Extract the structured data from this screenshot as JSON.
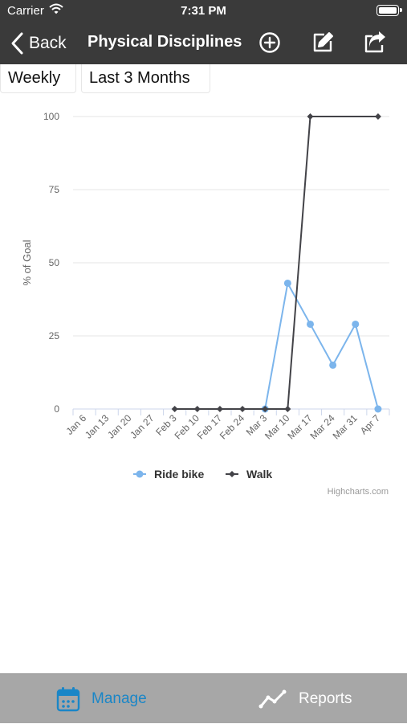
{
  "status_bar": {
    "carrier": "Carrier",
    "time": "7:31 PM"
  },
  "nav_bar": {
    "back_label": "Back",
    "title": "Physical Disciplines"
  },
  "filters": {
    "period": "Weekly",
    "range": "Last 3 Months"
  },
  "chart_data": {
    "type": "line",
    "ylabel": "% of Goal",
    "xlabel": "",
    "ylim": [
      0,
      100
    ],
    "y_ticks": [
      0,
      25,
      50,
      75,
      100
    ],
    "categories": [
      "Jan 6",
      "Jan 13",
      "Jan 20",
      "Jan 27",
      "Feb 3",
      "Feb 10",
      "Feb 17",
      "Feb 24",
      "Mar 3",
      "Mar 10",
      "Mar 17",
      "Mar 24",
      "Mar 31",
      "Apr 7"
    ],
    "grid": true,
    "legend_position": "bottom-center",
    "credits": "Highcharts.com",
    "series": [
      {
        "name": "Ride bike",
        "color": "#7cb5ec",
        "marker": "circle",
        "values": [
          null,
          null,
          null,
          null,
          null,
          null,
          null,
          null,
          0,
          43,
          29,
          15,
          29,
          0
        ]
      },
      {
        "name": "Walk",
        "color": "#434348",
        "marker": "diamond",
        "values": [
          null,
          null,
          null,
          null,
          0,
          0,
          0,
          0,
          0,
          0,
          100,
          null,
          null,
          100
        ]
      }
    ]
  },
  "tab_bar": {
    "manage_label": "Manage",
    "manage_color": "#1a86c7",
    "reports_label": "Reports",
    "reports_color": "#ffffff"
  }
}
